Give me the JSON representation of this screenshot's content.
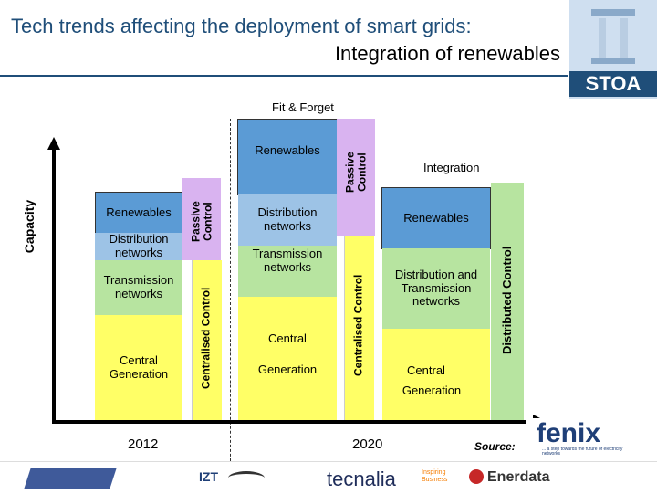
{
  "header": {
    "title_line1": "Tech trends affecting the deployment of smart grids:",
    "title_line2": "Integration of renewables",
    "logo_text": "STOA"
  },
  "diagram": {
    "axis_label": "Capacity",
    "top_label": "Fit & Forget",
    "year_2012": "2012",
    "year_2020": "2020",
    "col1": {
      "renewables": "Renewables",
      "distribution": "Distribution networks",
      "transmission": "Transmission networks",
      "central": "Central Generation",
      "passive": "Passive Control",
      "centralised": "Centralised Control"
    },
    "col2": {
      "renewables": "Renewables",
      "distribution": "Distribution networks",
      "transmission": "Transmission networks",
      "central": "Central",
      "generation": "Generation",
      "passive": "Passive Control",
      "centralised": "Centralised Control"
    },
    "col3": {
      "integration": "Integration",
      "renewables": "Renewables",
      "distribution_transmission": "Distribution and Transmission networks",
      "central": "Central",
      "generation": "Generation",
      "distributed": "Distributed Control"
    }
  },
  "footer": {
    "source_label": "Source:",
    "fenix_text": "fenix",
    "fenix_tagline": "... a step towards the future of electricity networks",
    "logos": [
      "IZT",
      "tecnalia",
      "Inspiring Business",
      "Enerdata"
    ]
  },
  "colors": {
    "blue": "#5b9bd5",
    "lightblue": "#9dc3e6",
    "green": "#b7e4a0",
    "yellow": "#ffff66",
    "purple": "#d9b3f0",
    "title": "#1f4e79"
  }
}
